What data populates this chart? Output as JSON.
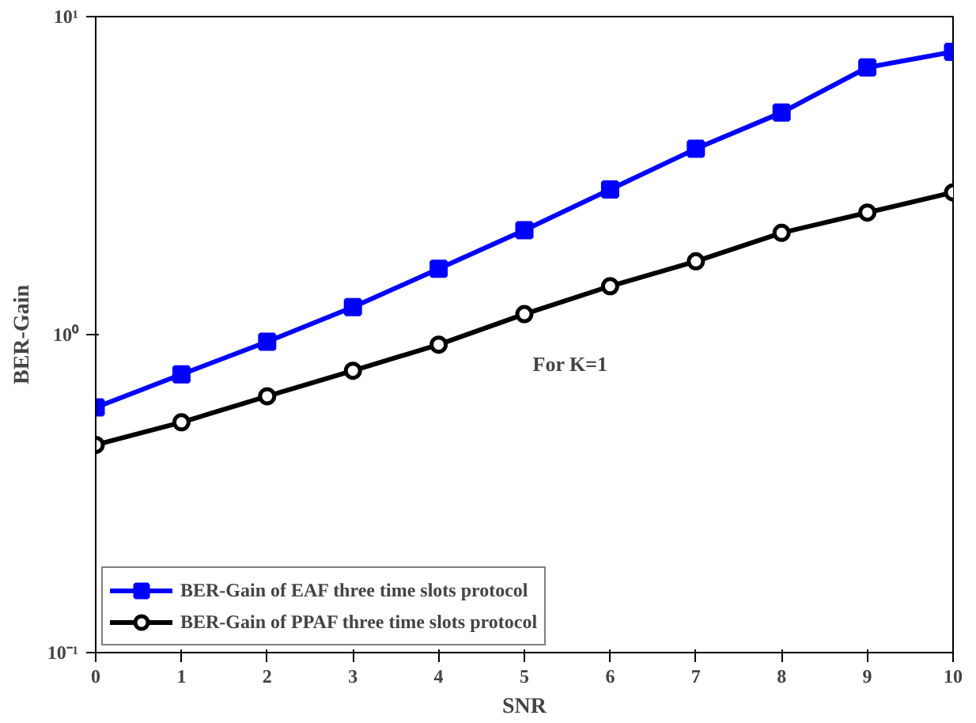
{
  "chart_data": {
    "type": "line",
    "xlabel": "SNR",
    "ylabel": "BER-Gain",
    "x": [
      0,
      1,
      2,
      3,
      4,
      5,
      6,
      7,
      8,
      9,
      10
    ],
    "series": [
      {
        "name": "BER-Gain of EAF three time slots protocol",
        "color": "#0000ff",
        "marker": "square",
        "values": [
          0.59,
          0.75,
          0.95,
          1.22,
          1.61,
          2.13,
          2.86,
          3.84,
          4.99,
          6.92,
          7.75
        ]
      },
      {
        "name": "BER-Gain of PPAF three time slots protocol",
        "color": "#000000",
        "marker": "circle",
        "values": [
          0.45,
          0.53,
          0.64,
          0.77,
          0.93,
          1.16,
          1.42,
          1.7,
          2.09,
          2.42,
          2.8
        ]
      }
    ],
    "annotations": [
      "For K=1"
    ],
    "log": "y",
    "xlim": [
      0,
      10
    ],
    "ylim": [
      0.1,
      10
    ],
    "xticks": [
      0,
      1,
      2,
      3,
      4,
      5,
      6,
      7,
      8,
      9,
      10
    ],
    "yticks": [
      {
        "value": 0.1,
        "label": "10⁻¹"
      },
      {
        "value": 1,
        "label": "10⁰"
      },
      {
        "value": 10,
        "label": "10¹"
      }
    ],
    "grid": false,
    "legend": "bottom left",
    "line_style": "solid"
  }
}
